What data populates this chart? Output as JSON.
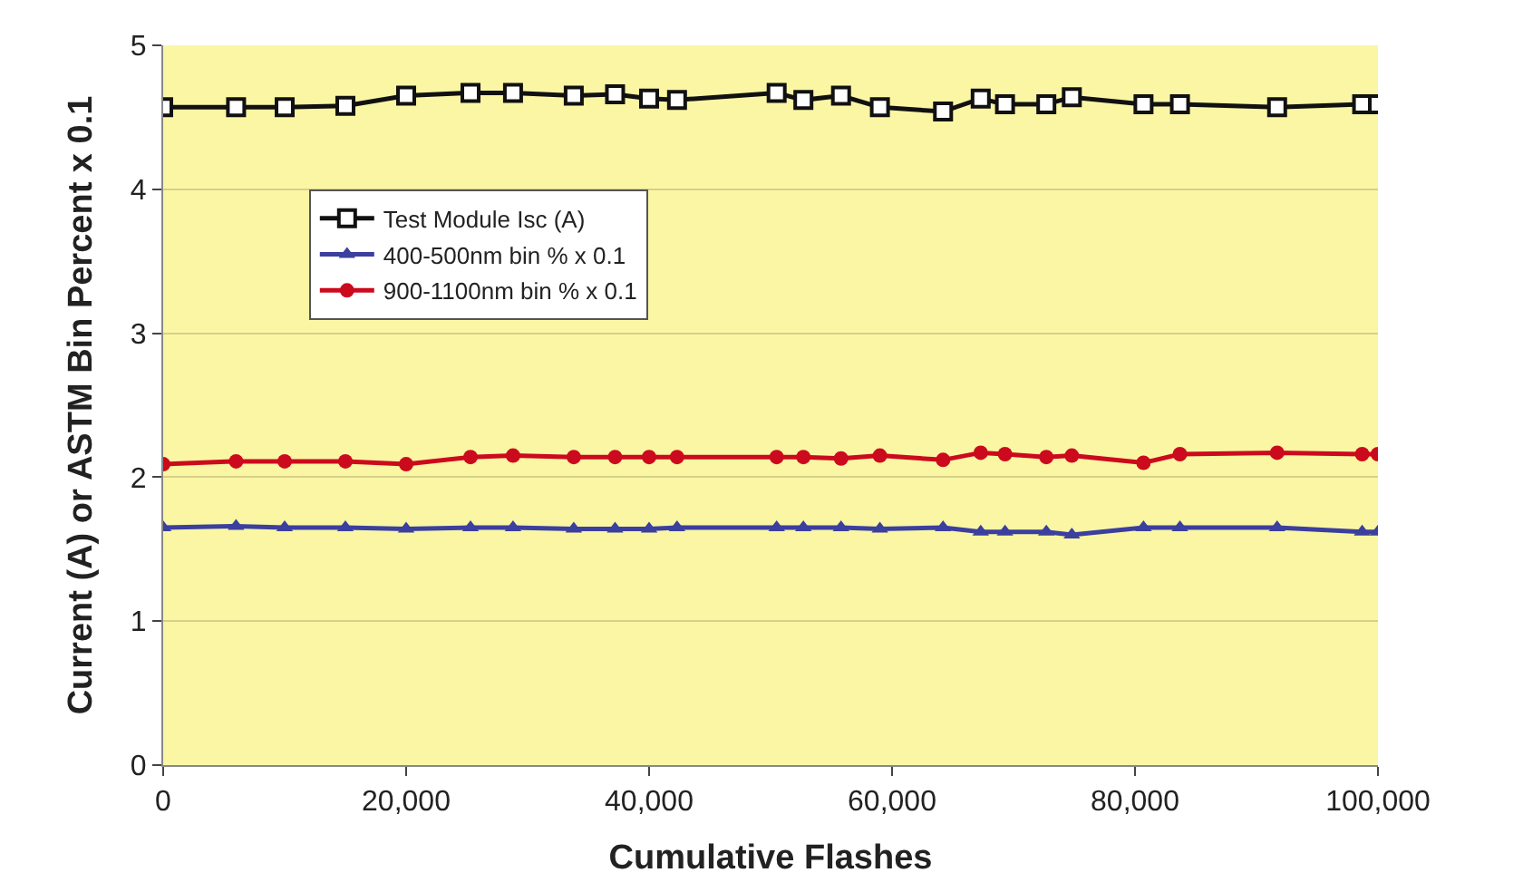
{
  "chart_data": {
    "type": "line",
    "xlabel": "Cumulative Flashes",
    "ylabel": "Current (A) or ASTM Bin Percent x 0.1",
    "x": [
      0,
      6000,
      10000,
      15000,
      20000,
      25300,
      28800,
      33800,
      37200,
      40000,
      42300,
      50500,
      52700,
      55800,
      59000,
      64200,
      67300,
      69300,
      72700,
      74800,
      80700,
      83700,
      91700,
      98700,
      100000
    ],
    "series": [
      {
        "name": "Test Module Isc (A)",
        "color": "#111111",
        "marker": "square",
        "values": [
          4.57,
          4.57,
          4.57,
          4.58,
          4.65,
          4.67,
          4.67,
          4.65,
          4.66,
          4.63,
          4.62,
          4.67,
          4.62,
          4.65,
          4.57,
          4.54,
          4.63,
          4.59,
          4.59,
          4.64,
          4.59,
          4.59,
          4.57,
          4.59,
          4.59
        ]
      },
      {
        "name": "400-500nm bin % x 0.1",
        "color": "#3b3f9e",
        "marker": "triangle",
        "values": [
          1.65,
          1.66,
          1.65,
          1.65,
          1.64,
          1.65,
          1.65,
          1.64,
          1.64,
          1.64,
          1.65,
          1.65,
          1.65,
          1.65,
          1.64,
          1.65,
          1.62,
          1.62,
          1.62,
          1.6,
          1.65,
          1.65,
          1.65,
          1.62,
          1.62
        ]
      },
      {
        "name": "900-1100nm bin % x 0.1",
        "color": "#cc0a1d",
        "marker": "circle",
        "values": [
          2.09,
          2.11,
          2.11,
          2.11,
          2.09,
          2.14,
          2.15,
          2.14,
          2.14,
          2.14,
          2.14,
          2.14,
          2.14,
          2.13,
          2.15,
          2.12,
          2.17,
          2.16,
          2.14,
          2.15,
          2.1,
          2.16,
          2.17,
          2.16,
          2.16
        ]
      }
    ],
    "xlim": [
      0,
      100000
    ],
    "xticks": [
      {
        "value": 0,
        "label": "0"
      },
      {
        "value": 20000,
        "label": "20,000"
      },
      {
        "value": 40000,
        "label": "40,000"
      },
      {
        "value": 60000,
        "label": "60,000"
      },
      {
        "value": 80000,
        "label": "80,000"
      },
      {
        "value": 100000,
        "label": "100,000"
      }
    ],
    "ylim": [
      0,
      5
    ],
    "yticks": [
      0,
      1,
      2,
      3,
      4,
      5
    ],
    "grid": "y",
    "legend": "top left",
    "line_style": "solid"
  }
}
